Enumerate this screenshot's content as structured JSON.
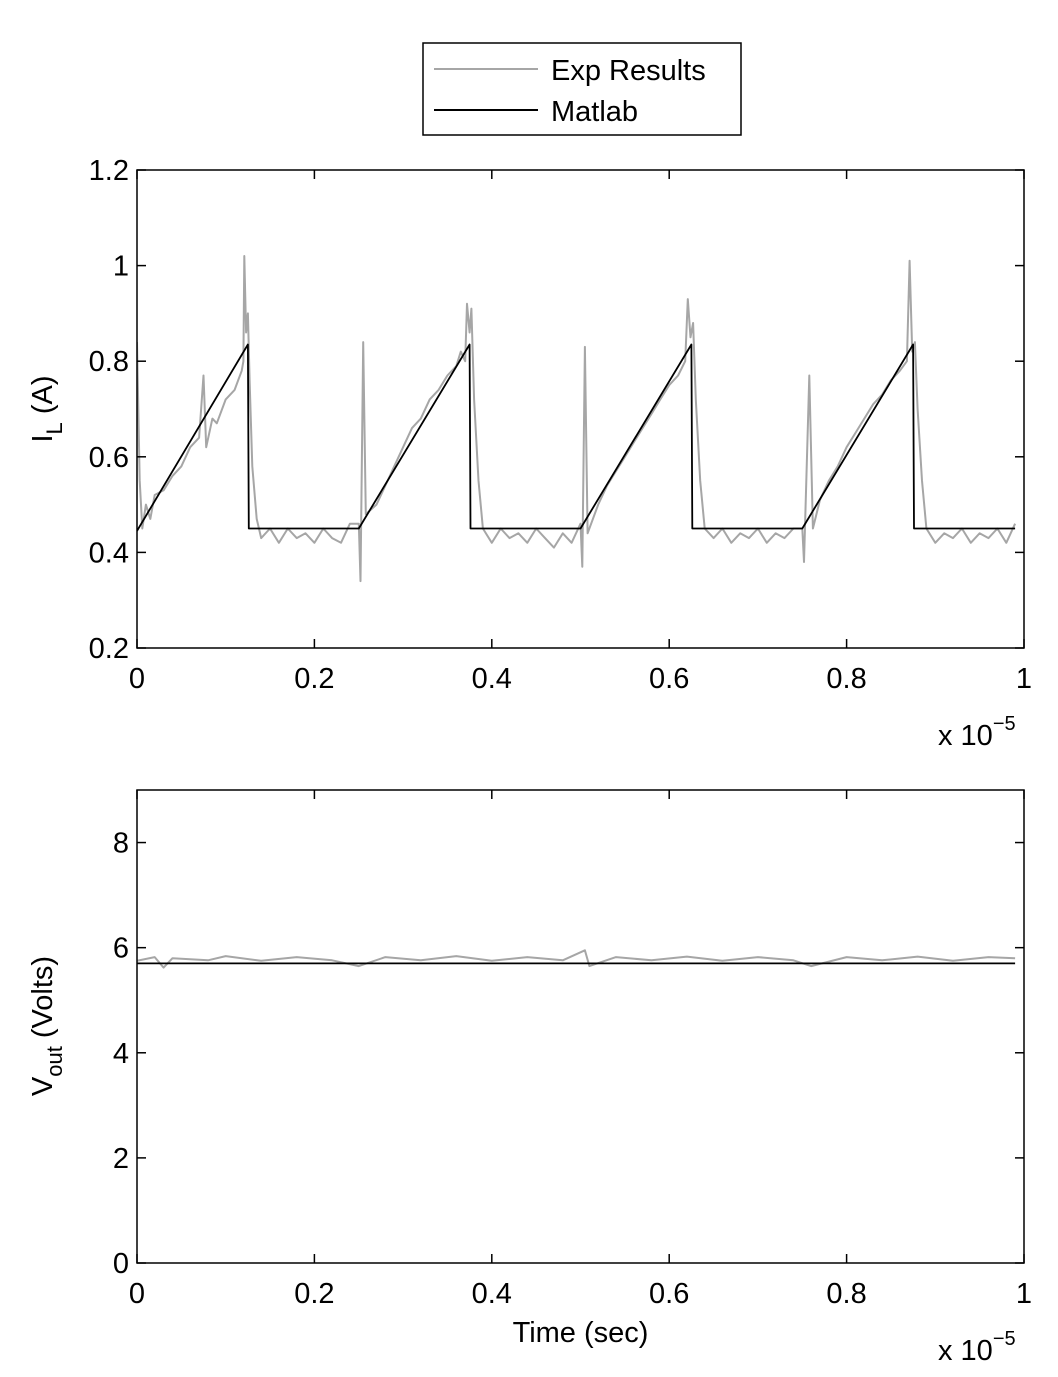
{
  "legend": {
    "placement": "top-center",
    "entries": [
      {
        "name": "Exp Results",
        "color": "#a6a6a6"
      },
      {
        "name": "Matlab",
        "color": "#000000"
      }
    ]
  },
  "chart_data": [
    {
      "type": "line",
      "title": "",
      "xlabel": "",
      "ylabel": "I_L (A)",
      "ylabel_main": "I",
      "ylabel_sub": "L",
      "ylabel_rest": " (A)",
      "x_multiplier": "x 10",
      "x_multiplier_exp": "−5",
      "xlim": [
        0,
        1
      ],
      "ylim": [
        0.2,
        1.2
      ],
      "xticks": [
        0,
        0.2,
        0.4,
        0.6,
        0.8,
        1
      ],
      "xtick_labels": [
        "0",
        "0.2",
        "0.4",
        "0.6",
        "0.8",
        "1"
      ],
      "yticks": [
        0.2,
        0.4,
        0.6,
        0.8,
        1,
        1.2
      ],
      "ytick_labels": [
        "0.2",
        "0.4",
        "0.6",
        "0.8",
        "1",
        "1.2"
      ],
      "grid": false,
      "series": [
        {
          "name": "Exp Results",
          "color": "#a6a6a6",
          "points": [
            [
              0,
              0.84
            ],
            [
              0.003,
              0.55
            ],
            [
              0.006,
              0.45
            ],
            [
              0.01,
              0.5
            ],
            [
              0.015,
              0.47
            ],
            [
              0.02,
              0.52
            ],
            [
              0.03,
              0.53
            ],
            [
              0.04,
              0.56
            ],
            [
              0.05,
              0.58
            ],
            [
              0.06,
              0.62
            ],
            [
              0.07,
              0.64
            ],
            [
              0.075,
              0.77
            ],
            [
              0.078,
              0.62
            ],
            [
              0.085,
              0.68
            ],
            [
              0.09,
              0.67
            ],
            [
              0.1,
              0.72
            ],
            [
              0.11,
              0.74
            ],
            [
              0.118,
              0.78
            ],
            [
              0.12,
              0.8
            ],
            [
              0.121,
              1.02
            ],
            [
              0.123,
              0.86
            ],
            [
              0.125,
              0.9
            ],
            [
              0.127,
              0.76
            ],
            [
              0.13,
              0.58
            ],
            [
              0.135,
              0.47
            ],
            [
              0.14,
              0.43
            ],
            [
              0.15,
              0.45
            ],
            [
              0.16,
              0.42
            ],
            [
              0.17,
              0.45
            ],
            [
              0.18,
              0.43
            ],
            [
              0.19,
              0.44
            ],
            [
              0.2,
              0.42
            ],
            [
              0.21,
              0.45
            ],
            [
              0.22,
              0.43
            ],
            [
              0.23,
              0.42
            ],
            [
              0.24,
              0.46
            ],
            [
              0.25,
              0.46
            ],
            [
              0.252,
              0.34
            ],
            [
              0.255,
              0.84
            ],
            [
              0.258,
              0.48
            ],
            [
              0.27,
              0.5
            ],
            [
              0.28,
              0.54
            ],
            [
              0.29,
              0.58
            ],
            [
              0.3,
              0.62
            ],
            [
              0.31,
              0.66
            ],
            [
              0.32,
              0.68
            ],
            [
              0.33,
              0.72
            ],
            [
              0.34,
              0.74
            ],
            [
              0.35,
              0.77
            ],
            [
              0.36,
              0.79
            ],
            [
              0.365,
              0.82
            ],
            [
              0.37,
              0.8
            ],
            [
              0.372,
              0.92
            ],
            [
              0.375,
              0.86
            ],
            [
              0.377,
              0.91
            ],
            [
              0.38,
              0.72
            ],
            [
              0.385,
              0.55
            ],
            [
              0.39,
              0.45
            ],
            [
              0.4,
              0.42
            ],
            [
              0.41,
              0.45
            ],
            [
              0.42,
              0.43
            ],
            [
              0.43,
              0.44
            ],
            [
              0.44,
              0.42
            ],
            [
              0.45,
              0.45
            ],
            [
              0.46,
              0.43
            ],
            [
              0.47,
              0.41
            ],
            [
              0.48,
              0.44
            ],
            [
              0.49,
              0.42
            ],
            [
              0.5,
              0.46
            ],
            [
              0.502,
              0.37
            ],
            [
              0.505,
              0.83
            ],
            [
              0.508,
              0.44
            ],
            [
              0.52,
              0.5
            ],
            [
              0.53,
              0.54
            ],
            [
              0.54,
              0.57
            ],
            [
              0.55,
              0.6
            ],
            [
              0.56,
              0.63
            ],
            [
              0.57,
              0.66
            ],
            [
              0.58,
              0.69
            ],
            [
              0.59,
              0.72
            ],
            [
              0.6,
              0.75
            ],
            [
              0.61,
              0.77
            ],
            [
              0.618,
              0.8
            ],
            [
              0.621,
              0.93
            ],
            [
              0.624,
              0.85
            ],
            [
              0.627,
              0.88
            ],
            [
              0.63,
              0.72
            ],
            [
              0.635,
              0.55
            ],
            [
              0.64,
              0.45
            ],
            [
              0.65,
              0.43
            ],
            [
              0.66,
              0.45
            ],
            [
              0.67,
              0.42
            ],
            [
              0.68,
              0.44
            ],
            [
              0.69,
              0.43
            ],
            [
              0.7,
              0.45
            ],
            [
              0.71,
              0.42
            ],
            [
              0.72,
              0.44
            ],
            [
              0.73,
              0.43
            ],
            [
              0.74,
              0.45
            ],
            [
              0.75,
              0.45
            ],
            [
              0.752,
              0.38
            ],
            [
              0.758,
              0.77
            ],
            [
              0.762,
              0.45
            ],
            [
              0.77,
              0.51
            ],
            [
              0.78,
              0.55
            ],
            [
              0.79,
              0.58
            ],
            [
              0.8,
              0.62
            ],
            [
              0.81,
              0.65
            ],
            [
              0.82,
              0.68
            ],
            [
              0.83,
              0.71
            ],
            [
              0.84,
              0.73
            ],
            [
              0.85,
              0.76
            ],
            [
              0.86,
              0.78
            ],
            [
              0.868,
              0.8
            ],
            [
              0.871,
              1.01
            ],
            [
              0.874,
              0.82
            ],
            [
              0.877,
              0.84
            ],
            [
              0.88,
              0.7
            ],
            [
              0.885,
              0.55
            ],
            [
              0.89,
              0.45
            ],
            [
              0.9,
              0.42
            ],
            [
              0.91,
              0.44
            ],
            [
              0.92,
              0.43
            ],
            [
              0.93,
              0.45
            ],
            [
              0.94,
              0.42
            ],
            [
              0.95,
              0.44
            ],
            [
              0.96,
              0.43
            ],
            [
              0.97,
              0.45
            ],
            [
              0.98,
              0.42
            ],
            [
              0.99,
              0.46
            ]
          ]
        },
        {
          "name": "Matlab",
          "color": "#000000",
          "points": [
            [
              0,
              0.445
            ],
            [
              0.125,
              0.835
            ],
            [
              0.126,
              0.45
            ],
            [
              0.25,
              0.45
            ],
            [
              0.375,
              0.835
            ],
            [
              0.376,
              0.45
            ],
            [
              0.5,
              0.45
            ],
            [
              0.625,
              0.835
            ],
            [
              0.626,
              0.45
            ],
            [
              0.75,
              0.45
            ],
            [
              0.875,
              0.835
            ],
            [
              0.876,
              0.45
            ],
            [
              0.99,
              0.45
            ]
          ]
        }
      ]
    },
    {
      "type": "line",
      "title": "",
      "xlabel": "Time (sec)",
      "ylabel": "V_out (Volts)",
      "ylabel_main": "V",
      "ylabel_sub": "out",
      "ylabel_rest": " (Volts)",
      "x_multiplier": "x 10",
      "x_multiplier_exp": "−5",
      "xlim": [
        0,
        1
      ],
      "ylim": [
        0,
        9
      ],
      "xticks": [
        0,
        0.2,
        0.4,
        0.6,
        0.8,
        1
      ],
      "xtick_labels": [
        "0",
        "0.2",
        "0.4",
        "0.6",
        "0.8",
        "1"
      ],
      "yticks": [
        0,
        2,
        4,
        6,
        8
      ],
      "ytick_labels": [
        "0",
        "2",
        "4",
        "6",
        "8"
      ],
      "grid": false,
      "series": [
        {
          "name": "Exp Results",
          "color": "#a6a6a6",
          "points": [
            [
              0,
              5.75
            ],
            [
              0.02,
              5.82
            ],
            [
              0.03,
              5.62
            ],
            [
              0.04,
              5.8
            ],
            [
              0.08,
              5.76
            ],
            [
              0.1,
              5.84
            ],
            [
              0.14,
              5.75
            ],
            [
              0.18,
              5.82
            ],
            [
              0.22,
              5.76
            ],
            [
              0.25,
              5.65
            ],
            [
              0.28,
              5.82
            ],
            [
              0.32,
              5.76
            ],
            [
              0.36,
              5.84
            ],
            [
              0.4,
              5.75
            ],
            [
              0.44,
              5.82
            ],
            [
              0.48,
              5.76
            ],
            [
              0.505,
              5.95
            ],
            [
              0.51,
              5.65
            ],
            [
              0.54,
              5.82
            ],
            [
              0.58,
              5.76
            ],
            [
              0.62,
              5.83
            ],
            [
              0.66,
              5.75
            ],
            [
              0.7,
              5.82
            ],
            [
              0.74,
              5.76
            ],
            [
              0.76,
              5.65
            ],
            [
              0.8,
              5.82
            ],
            [
              0.84,
              5.76
            ],
            [
              0.88,
              5.83
            ],
            [
              0.92,
              5.75
            ],
            [
              0.96,
              5.82
            ],
            [
              0.99,
              5.8
            ]
          ]
        },
        {
          "name": "Matlab",
          "color": "#000000",
          "points": [
            [
              0,
              5.7
            ],
            [
              0.99,
              5.7
            ]
          ]
        }
      ]
    }
  ]
}
